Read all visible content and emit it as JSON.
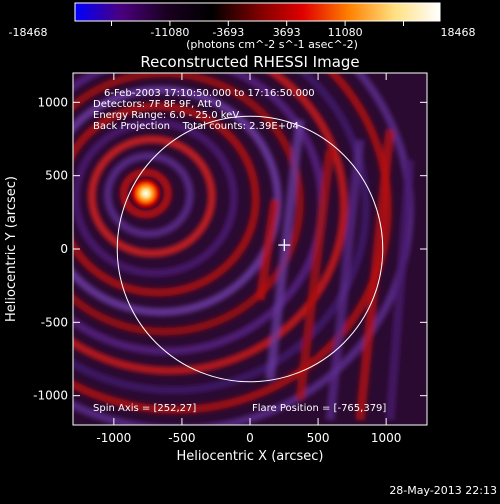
{
  "colorbar": {
    "ticks": [
      "-18468",
      "-11080",
      "-3693",
      "3693",
      "11080",
      "18468"
    ],
    "unit_label": "(photons cm^-2 s^-1 asec^-2)",
    "colors": [
      "#0000ff",
      "#4a0080",
      "#1a0020",
      "#000000",
      "#7a0000",
      "#e00000",
      "#ff8000",
      "#ffe080",
      "#ffffff"
    ]
  },
  "plot": {
    "title": "Reconstructed RHESSI Image",
    "xlabel": "Heliocentric X (arcsec)",
    "ylabel": "Heliocentric Y (arcsec)",
    "info": [
      "6-Feb-2003 17:10:50.000 to 17:16:50.000",
      "Detectors: 7F 8F 9F, Att 0",
      "Energy Range: 6.0 - 25.0 keV",
      "Back Projection    Total counts: 2.39E+04"
    ],
    "spin_axis": "Spin Axis = [252,27]",
    "flare_position": "Flare Position = [-765,379]",
    "timestamp": "28-May-2013 22:13"
  },
  "chart_data": {
    "type": "heatmap",
    "title": "Reconstructed RHESSI Image",
    "xlabel": "Heliocentric X (arcsec)",
    "ylabel": "Heliocentric Y (arcsec)",
    "xlim": [
      -1300,
      1300
    ],
    "ylim": [
      -1200,
      1200
    ],
    "xticks": [
      -1000,
      -500,
      0,
      500,
      1000
    ],
    "yticks": [
      -1000,
      -500,
      0,
      500,
      1000
    ],
    "color_range": [
      -18468,
      18468
    ],
    "solar_disk": {
      "center": [
        0,
        0
      ],
      "radius_arcsec": 975
    },
    "spin_axis": [
      252,
      27
    ],
    "flare_position": [
      -765,
      379
    ],
    "total_counts": 23900.0,
    "energy_range_keV": [
      6.0,
      25.0
    ],
    "detectors": [
      "7F",
      "8F",
      "9F"
    ],
    "attenuator": 0,
    "time_range": [
      "6-Feb-2003 17:10:50.000",
      "17:16:50.000"
    ],
    "grid": false
  }
}
